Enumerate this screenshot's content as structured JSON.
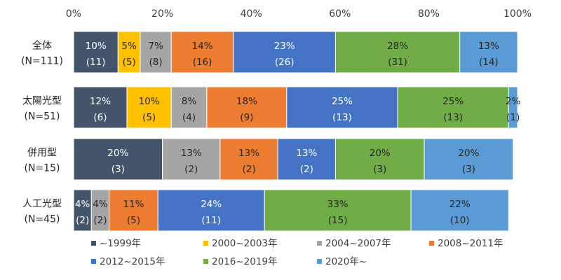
{
  "chart_data": {
    "type": "bar",
    "orientation": "horizontal",
    "stacked": "percent",
    "categories": [
      [
        "全体",
        "(N=111)"
      ],
      [
        "太陽光型",
        "(N=51)"
      ],
      [
        "併用型",
        "(N=15)"
      ],
      [
        "人工光型",
        "(N=45)"
      ]
    ],
    "x_ticks": [
      "0%",
      "20%",
      "40%",
      "60%",
      "80%",
      "100%"
    ],
    "xlim": [
      0,
      100
    ],
    "legend_position": "bottom",
    "series": [
      {
        "name": "~1999年",
        "color": "#44546A",
        "text_color": "#ffffff",
        "values": [
          10,
          12,
          20,
          4
        ],
        "counts": [
          11,
          6,
          3,
          2
        ],
        "labels": [
          "10%",
          "12%",
          "20%",
          "4%"
        ],
        "count_labels": [
          "(11)",
          "(6)",
          "(3)",
          "(2)"
        ]
      },
      {
        "name": "2000~2003年",
        "color": "#FFC000",
        "text_color": "#262626",
        "values": [
          5,
          10,
          0,
          0
        ],
        "counts": [
          5,
          5,
          0,
          0
        ],
        "labels": [
          "5%",
          "10%",
          "",
          ""
        ],
        "count_labels": [
          "(5)",
          "(5)",
          "",
          ""
        ]
      },
      {
        "name": "2004~2007年",
        "color": "#A5A5A5",
        "text_color": "#262626",
        "values": [
          7,
          8,
          13,
          4
        ],
        "counts": [
          8,
          4,
          2,
          2
        ],
        "labels": [
          "7%",
          "8%",
          "13%",
          "4%"
        ],
        "count_labels": [
          "(8)",
          "(4)",
          "(2)",
          "(2)"
        ]
      },
      {
        "name": "2008~2011年",
        "color": "#ED7D31",
        "text_color": "#262626",
        "values": [
          14,
          18,
          13,
          11
        ],
        "counts": [
          16,
          9,
          2,
          5
        ],
        "labels": [
          "14%",
          "18%",
          "13%",
          "11%"
        ],
        "count_labels": [
          "(16)",
          "(9)",
          "(2)",
          "(5)"
        ]
      },
      {
        "name": "2012~2015年",
        "color": "#4472C4",
        "text_color": "#ffffff",
        "values": [
          23,
          25,
          13,
          24
        ],
        "counts": [
          26,
          13,
          2,
          11
        ],
        "labels": [
          "23%",
          "25%",
          "13%",
          "24%"
        ],
        "count_labels": [
          "(26)",
          "(13)",
          "(2)",
          "(11)"
        ]
      },
      {
        "name": "2016~2019年",
        "color": "#70AD47",
        "text_color": "#262626",
        "values": [
          28,
          25,
          20,
          33
        ],
        "counts": [
          31,
          13,
          3,
          15
        ],
        "labels": [
          "28%",
          "25%",
          "20%",
          "33%"
        ],
        "count_labels": [
          "(31)",
          "(13)",
          "(3)",
          "(15)"
        ]
      },
      {
        "name": "2020年~",
        "color": "#5B9BD5",
        "text_color": "#262626",
        "values": [
          13,
          2,
          20,
          22
        ],
        "counts": [
          14,
          1,
          3,
          10
        ],
        "labels": [
          "13%",
          "2%",
          "20%",
          "22%"
        ],
        "count_labels": [
          "(14)",
          "(1)",
          "(3)",
          "(10)"
        ]
      }
    ]
  }
}
